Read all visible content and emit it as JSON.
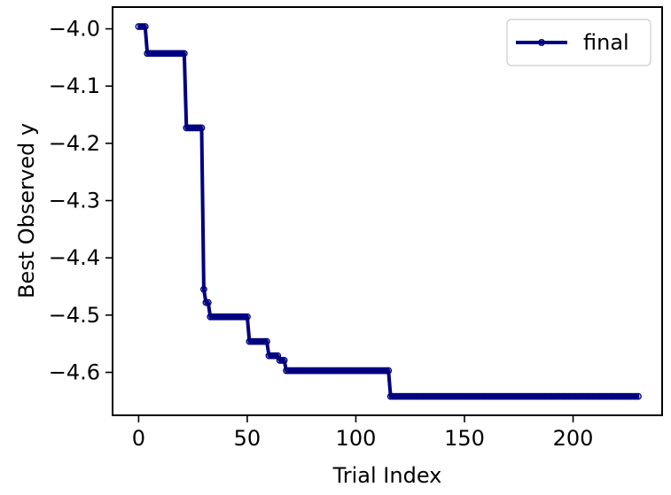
{
  "chart_data": {
    "type": "line",
    "title": "",
    "xlabel": "Trial Index",
    "ylabel": "Best Observed y",
    "xlim": [
      -12,
      241
    ],
    "ylim": [
      -4.675,
      -3.962
    ],
    "xticks": [
      0,
      50,
      100,
      150,
      200
    ],
    "xtick_labels": [
      "0",
      "50",
      "100",
      "150",
      "200"
    ],
    "yticks": [
      -4.0,
      -4.1,
      -4.2,
      -4.3,
      -4.4,
      -4.5,
      -4.6
    ],
    "ytick_labels": [
      "−4.0",
      "−4.1",
      "−4.2",
      "−4.3",
      "−4.4",
      "−4.5",
      "−4.6"
    ],
    "grid": false,
    "legend": {
      "position": "top-right"
    },
    "series": [
      {
        "name": "final",
        "color": "#000080",
        "marker": "circle-open",
        "step_points": [
          [
            0,
            -3.996
          ],
          [
            4,
            -4.043
          ],
          [
            22,
            -4.173
          ],
          [
            30,
            -4.455
          ],
          [
            31,
            -4.478
          ],
          [
            33,
            -4.503
          ],
          [
            51,
            -4.546
          ],
          [
            60,
            -4.571
          ],
          [
            65,
            -4.579
          ],
          [
            68,
            -4.597
          ],
          [
            116,
            -4.642
          ]
        ],
        "last_x": 230
      }
    ]
  }
}
